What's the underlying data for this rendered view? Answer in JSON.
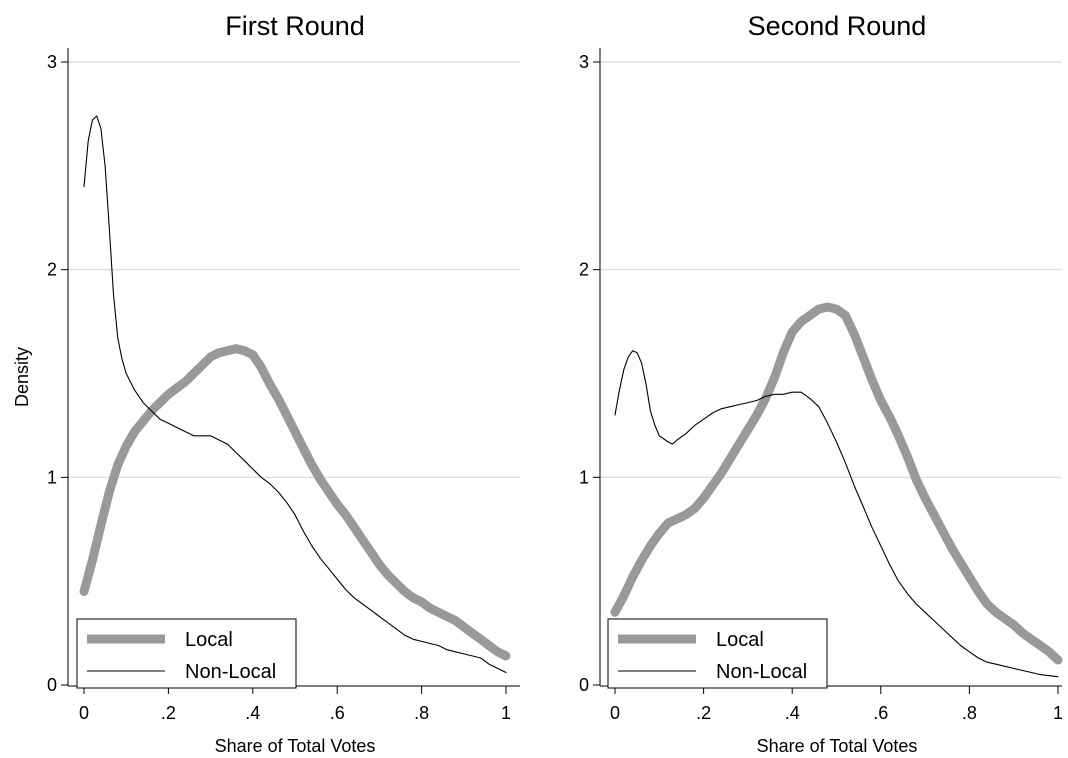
{
  "chart_data": [
    {
      "type": "line",
      "title": "First Round",
      "xlabel": "Share of Total Votes",
      "ylabel": "Density",
      "xlim": [
        0,
        1
      ],
      "ylim": [
        0,
        3
      ],
      "x_ticks": [
        0,
        0.2,
        0.4,
        0.6,
        0.8,
        1
      ],
      "x_tick_labels": [
        "0",
        ".2",
        ".4",
        ".6",
        ".8",
        "1"
      ],
      "y_ticks": [
        0,
        1,
        2,
        3
      ],
      "y_tick_labels": [
        "0",
        "1",
        "2",
        "3"
      ],
      "grid": true,
      "legend": "bottom-left",
      "series": [
        {
          "name": "Local",
          "color": "#999999",
          "style": "thick",
          "x": [
            0,
            0.02,
            0.04,
            0.06,
            0.08,
            0.1,
            0.12,
            0.14,
            0.16,
            0.18,
            0.2,
            0.22,
            0.24,
            0.26,
            0.28,
            0.3,
            0.32,
            0.34,
            0.36,
            0.38,
            0.4,
            0.42,
            0.44,
            0.46,
            0.48,
            0.5,
            0.52,
            0.54,
            0.56,
            0.58,
            0.6,
            0.62,
            0.64,
            0.66,
            0.68,
            0.7,
            0.72,
            0.74,
            0.76,
            0.78,
            0.8,
            0.82,
            0.84,
            0.86,
            0.88,
            0.9,
            0.92,
            0.94,
            0.96,
            0.98,
            1
          ],
          "y": [
            0.45,
            0.6,
            0.77,
            0.93,
            1.06,
            1.15,
            1.22,
            1.27,
            1.32,
            1.36,
            1.4,
            1.43,
            1.46,
            1.5,
            1.54,
            1.58,
            1.6,
            1.61,
            1.62,
            1.61,
            1.59,
            1.53,
            1.45,
            1.38,
            1.3,
            1.22,
            1.14,
            1.06,
            0.99,
            0.93,
            0.87,
            0.82,
            0.76,
            0.7,
            0.64,
            0.58,
            0.53,
            0.49,
            0.45,
            0.42,
            0.4,
            0.37,
            0.35,
            0.33,
            0.31,
            0.28,
            0.25,
            0.22,
            0.19,
            0.16,
            0.14
          ]
        },
        {
          "name": "Non-Local",
          "color": "#000000",
          "style": "thin",
          "x": [
            0,
            0.01,
            0.02,
            0.03,
            0.04,
            0.05,
            0.06,
            0.07,
            0.08,
            0.09,
            0.1,
            0.12,
            0.14,
            0.16,
            0.18,
            0.2,
            0.22,
            0.24,
            0.26,
            0.28,
            0.3,
            0.32,
            0.34,
            0.36,
            0.38,
            0.4,
            0.42,
            0.44,
            0.46,
            0.48,
            0.5,
            0.52,
            0.54,
            0.56,
            0.58,
            0.6,
            0.62,
            0.64,
            0.66,
            0.68,
            0.7,
            0.72,
            0.74,
            0.76,
            0.78,
            0.8,
            0.82,
            0.84,
            0.86,
            0.88,
            0.9,
            0.92,
            0.94,
            0.96,
            0.98,
            1
          ],
          "y": [
            2.4,
            2.62,
            2.72,
            2.74,
            2.68,
            2.5,
            2.2,
            1.88,
            1.67,
            1.57,
            1.5,
            1.42,
            1.36,
            1.32,
            1.28,
            1.26,
            1.24,
            1.22,
            1.2,
            1.2,
            1.2,
            1.18,
            1.16,
            1.12,
            1.08,
            1.04,
            1.0,
            0.97,
            0.93,
            0.88,
            0.82,
            0.74,
            0.67,
            0.61,
            0.56,
            0.51,
            0.46,
            0.42,
            0.39,
            0.36,
            0.33,
            0.3,
            0.27,
            0.24,
            0.22,
            0.21,
            0.2,
            0.19,
            0.17,
            0.16,
            0.15,
            0.14,
            0.13,
            0.1,
            0.08,
            0.06
          ]
        }
      ]
    },
    {
      "type": "line",
      "title": "Second Round",
      "xlabel": "Share of Total Votes",
      "ylabel": "",
      "xlim": [
        0,
        1
      ],
      "ylim": [
        0,
        3
      ],
      "x_ticks": [
        0,
        0.2,
        0.4,
        0.6,
        0.8,
        1
      ],
      "x_tick_labels": [
        "0",
        ".2",
        ".4",
        ".6",
        ".8",
        "1"
      ],
      "y_ticks": [
        0,
        1,
        2,
        3
      ],
      "y_tick_labels": [
        "0",
        "1",
        "2",
        "3"
      ],
      "grid": true,
      "legend": "bottom-left",
      "series": [
        {
          "name": "Local",
          "color": "#999999",
          "style": "thick",
          "x": [
            0,
            0.02,
            0.04,
            0.06,
            0.08,
            0.1,
            0.12,
            0.14,
            0.16,
            0.18,
            0.2,
            0.22,
            0.24,
            0.26,
            0.28,
            0.3,
            0.32,
            0.34,
            0.36,
            0.38,
            0.4,
            0.42,
            0.44,
            0.46,
            0.48,
            0.5,
            0.52,
            0.54,
            0.56,
            0.58,
            0.6,
            0.62,
            0.64,
            0.66,
            0.68,
            0.7,
            0.72,
            0.74,
            0.76,
            0.78,
            0.8,
            0.82,
            0.84,
            0.86,
            0.88,
            0.9,
            0.92,
            0.94,
            0.96,
            0.98,
            1
          ],
          "y": [
            0.35,
            0.43,
            0.52,
            0.6,
            0.67,
            0.73,
            0.78,
            0.8,
            0.82,
            0.85,
            0.9,
            0.96,
            1.02,
            1.09,
            1.16,
            1.23,
            1.3,
            1.38,
            1.48,
            1.6,
            1.7,
            1.75,
            1.78,
            1.81,
            1.82,
            1.81,
            1.78,
            1.69,
            1.58,
            1.47,
            1.37,
            1.29,
            1.2,
            1.1,
            0.99,
            0.9,
            0.82,
            0.74,
            0.66,
            0.59,
            0.52,
            0.45,
            0.39,
            0.35,
            0.32,
            0.29,
            0.25,
            0.22,
            0.19,
            0.16,
            0.12
          ]
        },
        {
          "name": "Non-Local",
          "color": "#000000",
          "style": "thin",
          "x": [
            0,
            0.01,
            0.02,
            0.03,
            0.04,
            0.05,
            0.06,
            0.07,
            0.08,
            0.09,
            0.1,
            0.12,
            0.13,
            0.14,
            0.16,
            0.18,
            0.2,
            0.22,
            0.24,
            0.26,
            0.28,
            0.3,
            0.32,
            0.34,
            0.36,
            0.38,
            0.4,
            0.42,
            0.44,
            0.46,
            0.48,
            0.5,
            0.52,
            0.54,
            0.56,
            0.58,
            0.6,
            0.62,
            0.64,
            0.66,
            0.68,
            0.7,
            0.72,
            0.74,
            0.76,
            0.78,
            0.8,
            0.82,
            0.84,
            0.86,
            0.88,
            0.9,
            0.92,
            0.94,
            0.96,
            0.98,
            1
          ],
          "y": [
            1.3,
            1.42,
            1.52,
            1.58,
            1.61,
            1.6,
            1.55,
            1.45,
            1.32,
            1.25,
            1.2,
            1.17,
            1.16,
            1.18,
            1.21,
            1.25,
            1.28,
            1.31,
            1.33,
            1.34,
            1.35,
            1.36,
            1.37,
            1.39,
            1.4,
            1.4,
            1.41,
            1.41,
            1.38,
            1.34,
            1.26,
            1.17,
            1.07,
            0.96,
            0.86,
            0.76,
            0.67,
            0.58,
            0.5,
            0.44,
            0.39,
            0.35,
            0.31,
            0.27,
            0.23,
            0.19,
            0.16,
            0.13,
            0.11,
            0.1,
            0.09,
            0.08,
            0.07,
            0.06,
            0.05,
            0.045,
            0.04
          ]
        }
      ]
    }
  ]
}
